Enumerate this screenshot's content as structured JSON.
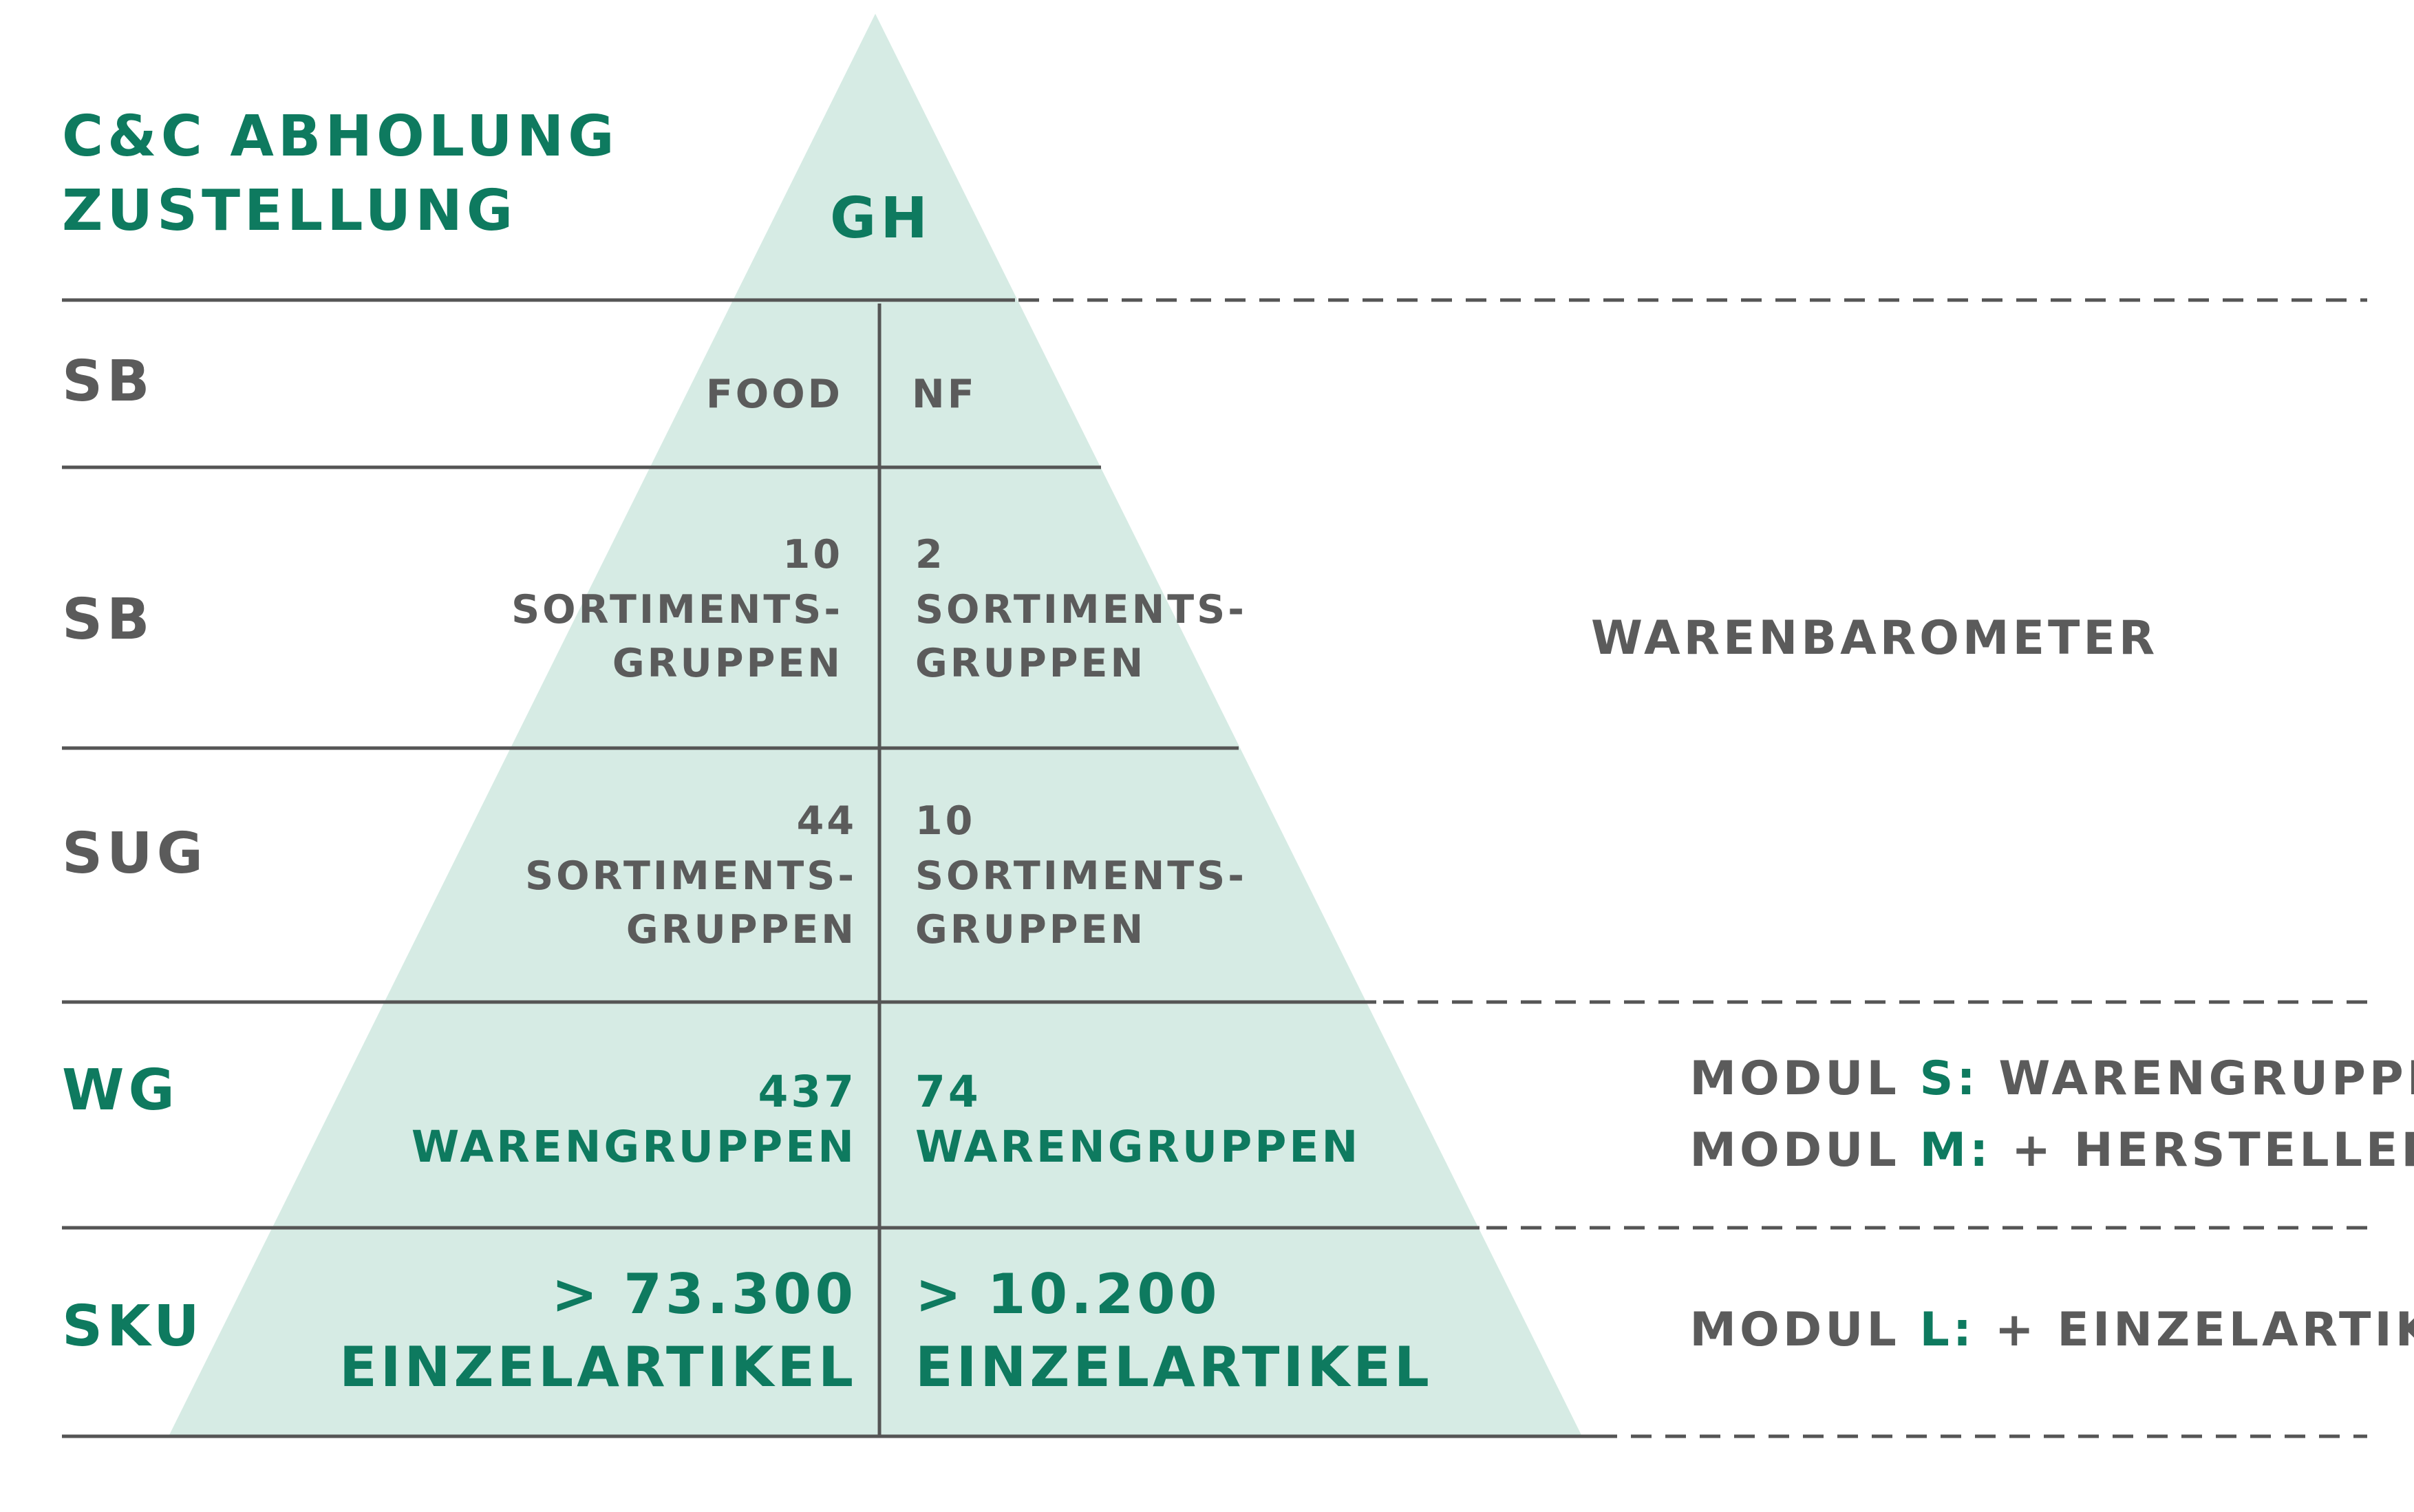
{
  "header": {
    "line1": "C&C ABHOLUNG",
    "line2": "ZUSTELLUNG",
    "apex": "GH"
  },
  "rows": [
    {
      "label": "SB"
    },
    {
      "label": "SB"
    },
    {
      "label": "SUG"
    },
    {
      "label": "WG"
    },
    {
      "label": "SKU"
    }
  ],
  "columns": {
    "food": "FOOD",
    "nf": "NF"
  },
  "cells": {
    "sb_food": {
      "count": "10",
      "line1": "SORTIMENTS-",
      "line2": "GRUPPEN"
    },
    "sb_nf": {
      "count": "2",
      "line1": "SORTIMENTS-",
      "line2": "GRUPPEN"
    },
    "sug_food": {
      "count": "44",
      "line1": "SORTIMENTS-",
      "line2": "GRUPPEN"
    },
    "sug_nf": {
      "count": "10",
      "line1": "SORTIMENTS-",
      "line2": "GRUPPEN"
    },
    "wg_food": {
      "count": "437",
      "line1": "WARENGRUPPEN"
    },
    "wg_nf": {
      "count": "74",
      "line1": "WARENGRUPPEN"
    },
    "sku_food": {
      "count": "> 73.300",
      "line1": "EINZELARTIKEL"
    },
    "sku_nf": {
      "count": "> 10.200",
      "line1": "EINZELARTIKEL"
    }
  },
  "side": {
    "barometer": "WARENBAROMETER",
    "modul_s": {
      "prefix": "MODUL ",
      "key": "S:",
      "rest": " WARENGRUPPE"
    },
    "modul_m": {
      "prefix": "MODUL ",
      "key": "M:",
      "rest": " + HERSTELLER"
    },
    "modul_l": {
      "prefix": "MODUL ",
      "key": "L:",
      "rest": " + EINZELARTIKEL"
    }
  },
  "colors": {
    "green": "#0e7a5f",
    "gray": "#5b5b5b",
    "triangle_fill": "#d6ebe4",
    "line": "#555555"
  }
}
